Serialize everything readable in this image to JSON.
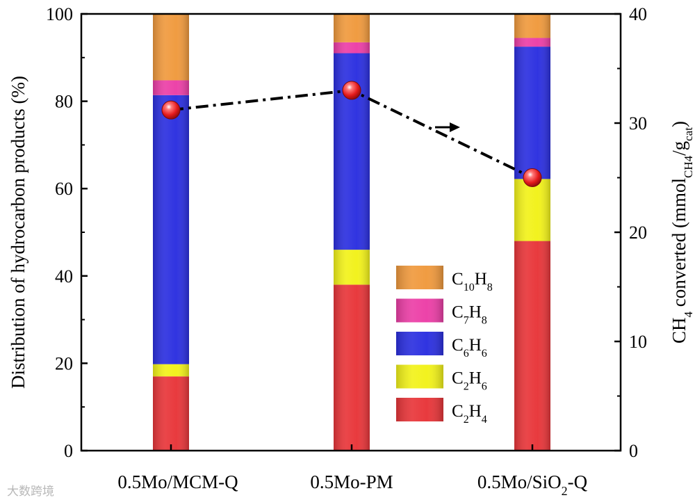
{
  "chart_data": {
    "type": "stacked-bar",
    "categories": [
      "0.5Mo/MCM-Q",
      "0.5Mo-PM",
      "0.5Mo/SiO2-Q"
    ],
    "category_labels": [
      {
        "main": "0.5Mo/MCM-Q"
      },
      {
        "main": "0.5Mo-PM"
      },
      {
        "main": "0.5Mo/SiO",
        "sub": "2",
        "rest": "-Q"
      }
    ],
    "series": [
      {
        "name": "C2H4",
        "label": {
          "a": "C",
          "sa": "2",
          "b": "H",
          "sb": "4"
        },
        "color": "#e8363a",
        "values": [
          17.0,
          38.0,
          48.0
        ]
      },
      {
        "name": "C2H6",
        "label": {
          "a": "C",
          "sa": "2",
          "b": "H",
          "sb": "6"
        },
        "color": "#f2f21a",
        "values": [
          2.8,
          8.0,
          14.2
        ]
      },
      {
        "name": "C6H6",
        "label": {
          "a": "C",
          "sa": "6",
          "b": "H",
          "sb": "6"
        },
        "color": "#2c30e0",
        "values": [
          61.6,
          45.0,
          30.3
        ]
      },
      {
        "name": "C7H8",
        "label": {
          "a": "C",
          "sa": "7",
          "b": "H",
          "sb": "8"
        },
        "color": "#ec3fa7",
        "values": [
          3.4,
          2.5,
          2.0
        ]
      },
      {
        "name": "C10H8",
        "label": {
          "a": "C",
          "sa": "10",
          "b": "H",
          "sb": "8"
        },
        "color": "#f09a3e",
        "values": [
          15.2,
          6.5,
          5.5
        ]
      }
    ],
    "line_series": {
      "name": "CH4 converted",
      "axis": "right",
      "values": [
        31.2,
        33.0,
        25.0
      ],
      "style": "dash-dot",
      "marker_color": "#e41a1c",
      "arrow_direction": "right"
    },
    "yleft": {
      "label": "Distribution of hydrocarbon products (%)",
      "lim": [
        0,
        100
      ],
      "ticks": [
        0,
        20,
        40,
        60,
        80,
        100
      ]
    },
    "yright": {
      "label_parts": {
        "ch": "CH",
        "ch_sub": "4",
        "mid": " converted (mmol",
        "mmol_sub": "CH4",
        "slash": "/g",
        "g_sub": "cat",
        "close": ")"
      },
      "lim": [
        0,
        40
      ],
      "ticks": [
        0,
        10,
        20,
        30,
        40
      ]
    },
    "legend_position": "lower-right",
    "watermark": "大数跨境"
  }
}
